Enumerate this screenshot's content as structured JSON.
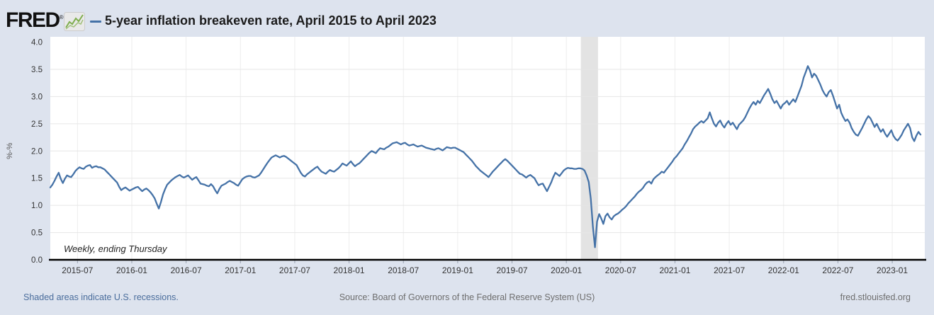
{
  "header": {
    "logo_text": "FRED",
    "registered_mark": "®",
    "legend_dash": "—",
    "title": "5-year inflation breakeven rate, April 2015 to April 2023"
  },
  "footer": {
    "recession_note": "Shaded areas indicate U.S. recessions.",
    "source": "Source: Board of Governors of the Federal Reserve System (US)",
    "site": "fred.stlouisfed.org"
  },
  "colors": {
    "page_background": "#dde3ee",
    "plot_background": "#ffffff",
    "line": "#4572a7",
    "recession_band": "#e3e3e3",
    "gridline": "#e6e6e6",
    "axis": "#000000",
    "tick_text": "#333333",
    "link_blue": "#4a6d9c",
    "muted_text": "#6e6e6e"
  },
  "chart_data": {
    "type": "line",
    "title": "5-year inflation breakeven rate, April 2015 to April 2023",
    "series_note": "Weekly, ending Thursday",
    "ylabel": "%-%",
    "ylim": [
      0.0,
      4.0
    ],
    "ytick_step": 0.5,
    "ytick_labels": [
      "0.0",
      "0.5",
      "1.0",
      "1.5",
      "2.0",
      "2.5",
      "3.0",
      "3.5",
      "4.0"
    ],
    "grid": "horizontal-strong, vertical-faint",
    "legend_position": "top-inline",
    "x_start": "2015-04-02",
    "x_end": "2023-03-30",
    "frequency": "weekly",
    "xticks": [
      {
        "label": "2015-07",
        "month_offset": 3
      },
      {
        "label": "2016-01",
        "month_offset": 9
      },
      {
        "label": "2016-07",
        "month_offset": 15
      },
      {
        "label": "2017-01",
        "month_offset": 21
      },
      {
        "label": "2017-07",
        "month_offset": 27
      },
      {
        "label": "2018-01",
        "month_offset": 33
      },
      {
        "label": "2018-07",
        "month_offset": 39
      },
      {
        "label": "2019-01",
        "month_offset": 45
      },
      {
        "label": "2019-07",
        "month_offset": 51
      },
      {
        "label": "2020-01",
        "month_offset": 57
      },
      {
        "label": "2020-07",
        "month_offset": 63
      },
      {
        "label": "2021-01",
        "month_offset": 69
      },
      {
        "label": "2021-07",
        "month_offset": 75
      },
      {
        "label": "2022-01",
        "month_offset": 81
      },
      {
        "label": "2022-07",
        "month_offset": 87
      },
      {
        "label": "2023-01",
        "month_offset": 93
      }
    ],
    "recession_shading": {
      "start": "2020-02",
      "end": "2020-04",
      "start_month_offset": 58.6,
      "end_month_offset": 60.5
    },
    "values": [
      1.33,
      1.38,
      1.45,
      1.53,
      1.6,
      1.49,
      1.41,
      1.49,
      1.55,
      1.53,
      1.52,
      1.57,
      1.63,
      1.67,
      1.7,
      1.68,
      1.67,
      1.71,
      1.73,
      1.74,
      1.69,
      1.71,
      1.72,
      1.7,
      1.7,
      1.68,
      1.66,
      1.62,
      1.58,
      1.54,
      1.5,
      1.46,
      1.42,
      1.34,
      1.28,
      1.31,
      1.33,
      1.3,
      1.27,
      1.29,
      1.31,
      1.33,
      1.34,
      1.3,
      1.26,
      1.29,
      1.31,
      1.28,
      1.24,
      1.19,
      1.13,
      1.03,
      0.94,
      1.06,
      1.2,
      1.3,
      1.38,
      1.42,
      1.46,
      1.49,
      1.52,
      1.54,
      1.56,
      1.53,
      1.51,
      1.53,
      1.55,
      1.51,
      1.47,
      1.5,
      1.52,
      1.46,
      1.4,
      1.39,
      1.38,
      1.36,
      1.35,
      1.39,
      1.35,
      1.28,
      1.22,
      1.3,
      1.36,
      1.38,
      1.4,
      1.43,
      1.45,
      1.43,
      1.41,
      1.38,
      1.36,
      1.42,
      1.48,
      1.51,
      1.53,
      1.54,
      1.54,
      1.52,
      1.51,
      1.53,
      1.55,
      1.6,
      1.66,
      1.72,
      1.78,
      1.83,
      1.88,
      1.9,
      1.92,
      1.9,
      1.88,
      1.9,
      1.91,
      1.89,
      1.86,
      1.83,
      1.8,
      1.77,
      1.74,
      1.67,
      1.6,
      1.55,
      1.53,
      1.57,
      1.6,
      1.63,
      1.66,
      1.69,
      1.71,
      1.66,
      1.62,
      1.6,
      1.58,
      1.62,
      1.65,
      1.63,
      1.62,
      1.65,
      1.68,
      1.72,
      1.77,
      1.75,
      1.73,
      1.77,
      1.81,
      1.76,
      1.72,
      1.75,
      1.77,
      1.81,
      1.85,
      1.89,
      1.93,
      1.97,
      2.0,
      1.98,
      1.96,
      2.01,
      2.05,
      2.04,
      2.03,
      2.06,
      2.08,
      2.11,
      2.14,
      2.15,
      2.16,
      2.14,
      2.12,
      2.14,
      2.15,
      2.12,
      2.1,
      2.11,
      2.12,
      2.1,
      2.08,
      2.09,
      2.1,
      2.08,
      2.06,
      2.05,
      2.04,
      2.03,
      2.02,
      2.04,
      2.05,
      2.03,
      2.01,
      2.04,
      2.07,
      2.06,
      2.05,
      2.06,
      2.06,
      2.04,
      2.02,
      2.0,
      1.98,
      1.94,
      1.9,
      1.86,
      1.82,
      1.77,
      1.72,
      1.68,
      1.64,
      1.61,
      1.58,
      1.55,
      1.52,
      1.57,
      1.62,
      1.66,
      1.7,
      1.74,
      1.78,
      1.82,
      1.85,
      1.82,
      1.78,
      1.74,
      1.7,
      1.66,
      1.62,
      1.58,
      1.57,
      1.54,
      1.51,
      1.54,
      1.56,
      1.53,
      1.5,
      1.43,
      1.37,
      1.39,
      1.4,
      1.33,
      1.26,
      1.34,
      1.42,
      1.52,
      1.6,
      1.57,
      1.54,
      1.59,
      1.64,
      1.67,
      1.69,
      1.68,
      1.68,
      1.67,
      1.67,
      1.68,
      1.68,
      1.67,
      1.64,
      1.55,
      1.43,
      1.12,
      0.6,
      0.23,
      0.7,
      0.84,
      0.76,
      0.66,
      0.8,
      0.85,
      0.78,
      0.74,
      0.8,
      0.83,
      0.85,
      0.88,
      0.92,
      0.95,
      0.99,
      1.04,
      1.08,
      1.12,
      1.16,
      1.21,
      1.25,
      1.28,
      1.32,
      1.38,
      1.42,
      1.44,
      1.4,
      1.48,
      1.52,
      1.55,
      1.58,
      1.62,
      1.6,
      1.65,
      1.7,
      1.75,
      1.8,
      1.86,
      1.9,
      1.95,
      2.0,
      2.05,
      2.12,
      2.18,
      2.25,
      2.32,
      2.4,
      2.45,
      2.48,
      2.52,
      2.55,
      2.52,
      2.56,
      2.6,
      2.71,
      2.6,
      2.5,
      2.45,
      2.52,
      2.56,
      2.48,
      2.43,
      2.5,
      2.55,
      2.48,
      2.52,
      2.46,
      2.4,
      2.48,
      2.52,
      2.56,
      2.62,
      2.7,
      2.78,
      2.85,
      2.9,
      2.85,
      2.92,
      2.88,
      2.95,
      3.02,
      3.08,
      3.14,
      3.05,
      2.95,
      2.88,
      2.92,
      2.85,
      2.78,
      2.85,
      2.88,
      2.92,
      2.85,
      2.9,
      2.95,
      2.9,
      3.0,
      3.1,
      3.2,
      3.35,
      3.45,
      3.56,
      3.48,
      3.35,
      3.42,
      3.38,
      3.3,
      3.22,
      3.12,
      3.05,
      3.0,
      3.08,
      3.12,
      3.02,
      2.9,
      2.78,
      2.85,
      2.7,
      2.62,
      2.55,
      2.58,
      2.52,
      2.42,
      2.35,
      2.3,
      2.28,
      2.35,
      2.42,
      2.5,
      2.58,
      2.64,
      2.6,
      2.52,
      2.44,
      2.5,
      2.42,
      2.35,
      2.4,
      2.32,
      2.26,
      2.32,
      2.38,
      2.28,
      2.22,
      2.19,
      2.24,
      2.3,
      2.38,
      2.44,
      2.5,
      2.42,
      2.25,
      2.18,
      2.28,
      2.35,
      2.3
    ]
  }
}
